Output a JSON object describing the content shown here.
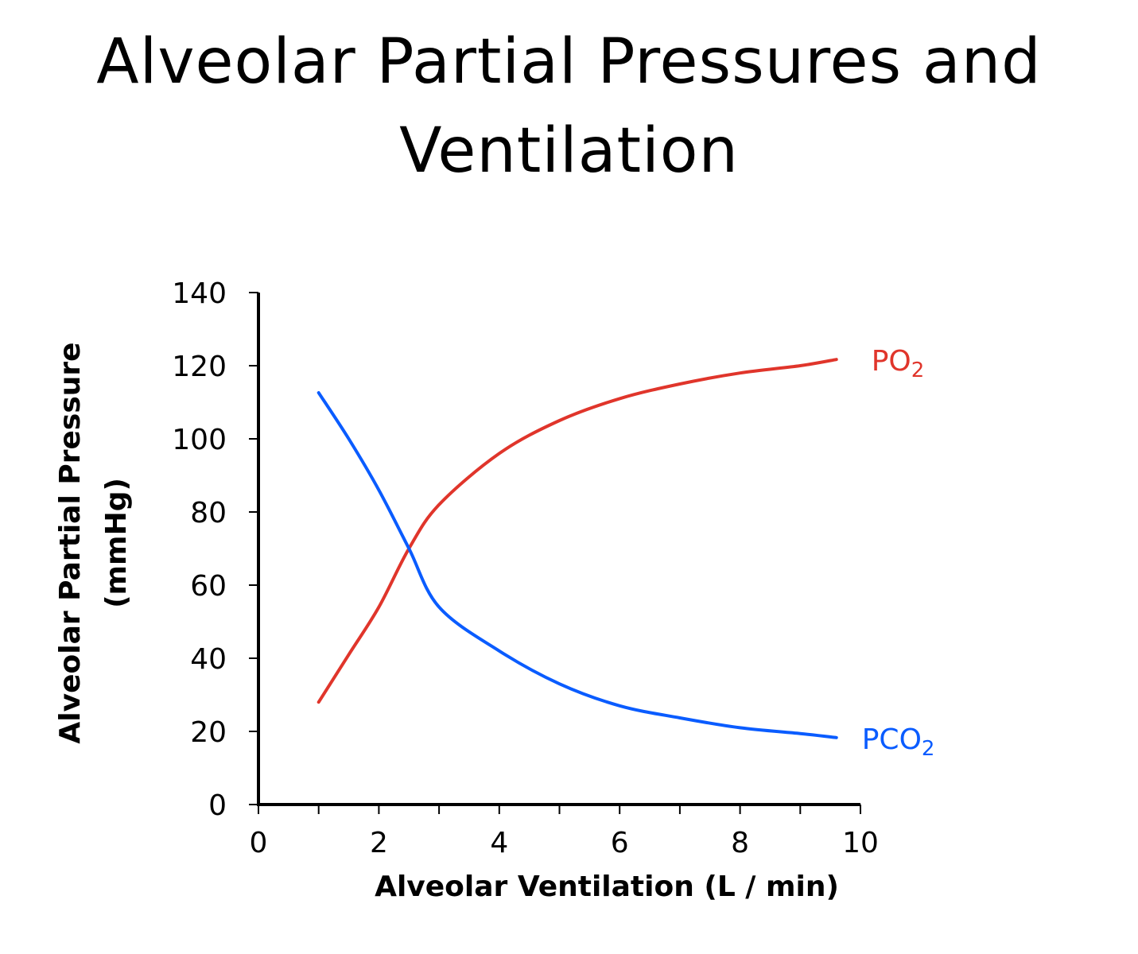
{
  "chart_data": {
    "type": "line",
    "title": [
      "Alveolar Partial Pressures and",
      "Ventilation"
    ],
    "xlabel": "Alveolar Ventilation (L / min)",
    "ylabel": [
      "Alveolar Partial Pressure",
      "(mmHg)"
    ],
    "xlim": [
      0,
      10
    ],
    "ylim": [
      0,
      140
    ],
    "xticks": [
      "0",
      "2",
      "4",
      "6",
      "8",
      "10"
    ],
    "yticks": [
      "0",
      "20",
      "40",
      "60",
      "80",
      "100",
      "120",
      "140"
    ],
    "grid": false,
    "legend": "labels at line ends",
    "series": [
      {
        "name": "PO",
        "subscript": "2",
        "color": "#e0352b",
        "x": [
          1,
          1.5,
          2,
          2.5,
          3,
          4,
          5,
          6,
          7,
          8,
          9,
          9.6
        ],
        "y": [
          28,
          41,
          54,
          70,
          82,
          96,
          105,
          111,
          115,
          118,
          120,
          121.7
        ]
      },
      {
        "name": "PCO",
        "subscript": "2",
        "color": "#0a5cff",
        "x": [
          1,
          1.5,
          2,
          2.5,
          3,
          4,
          5,
          6,
          7,
          8,
          9,
          9.6
        ],
        "y": [
          112.6,
          100,
          86,
          70,
          54,
          42,
          33,
          27,
          23.7,
          21,
          19.4,
          18.3
        ]
      }
    ]
  }
}
